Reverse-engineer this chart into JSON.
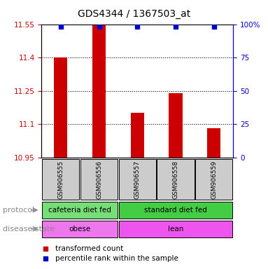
{
  "title": "GDS4344 / 1367503_at",
  "samples": [
    "GSM906555",
    "GSM906556",
    "GSM906557",
    "GSM906558",
    "GSM906559"
  ],
  "bar_values": [
    11.4,
    11.55,
    11.15,
    11.24,
    11.08
  ],
  "percentile_values": [
    98,
    98,
    98,
    98,
    98
  ],
  "ylim_left": [
    10.95,
    11.55
  ],
  "ylim_right": [
    0,
    100
  ],
  "yticks_left": [
    10.95,
    11.1,
    11.25,
    11.4,
    11.55
  ],
  "yticks_right": [
    0,
    25,
    50,
    75,
    100
  ],
  "dotted_lines": [
    11.1,
    11.25,
    11.4
  ],
  "bar_color": "#cc0000",
  "dot_color": "#0000cc",
  "protocol_groups": [
    {
      "label": "cafeteria diet fed",
      "samples": [
        0,
        1
      ],
      "color": "#77dd77"
    },
    {
      "label": "standard diet fed",
      "samples": [
        2,
        3,
        4
      ],
      "color": "#44cc44"
    }
  ],
  "disease_groups": [
    {
      "label": "obese",
      "samples": [
        0,
        1
      ],
      "color": "#ee77ee"
    },
    {
      "label": "lean",
      "samples": [
        2,
        3,
        4
      ],
      "color": "#ee55ee"
    }
  ],
  "protocol_label": "protocol",
  "disease_label": "disease state",
  "legend_red_label": "transformed count",
  "legend_blue_label": "percentile rank within the sample",
  "sample_box_color": "#cccccc",
  "left_label_color": "#888888",
  "arrow_color": "#888888"
}
